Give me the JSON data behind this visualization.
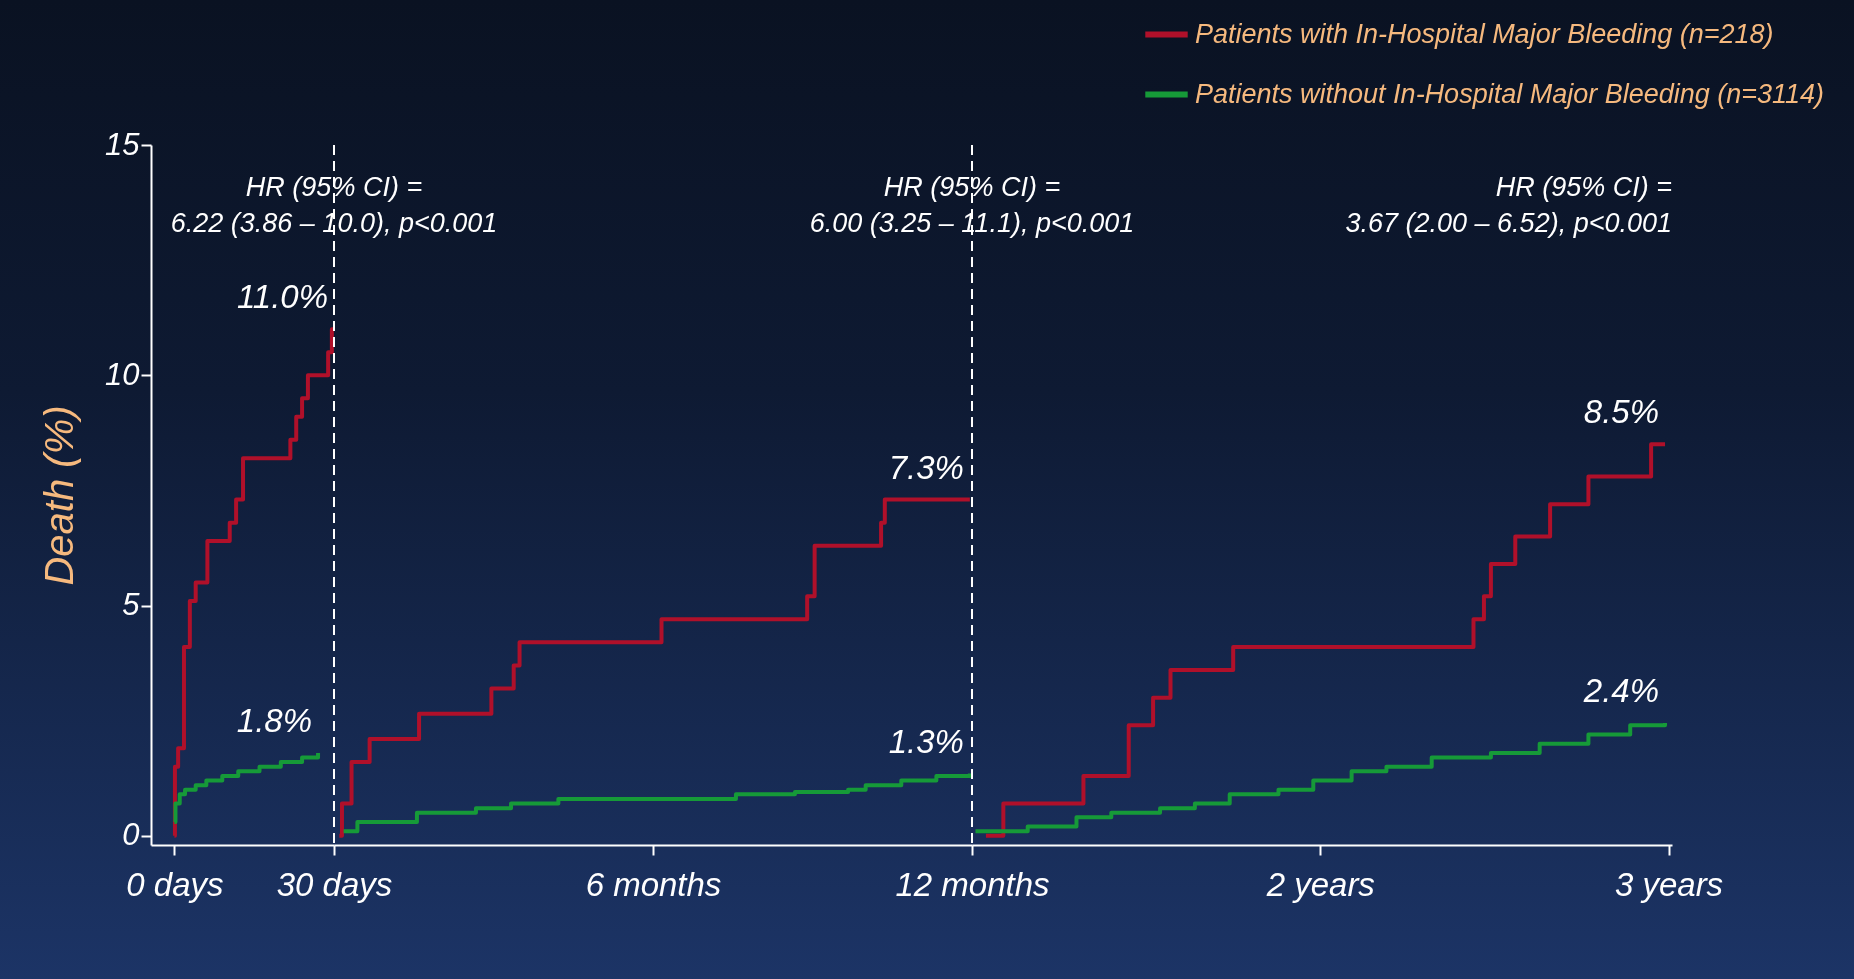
{
  "chart_data": [
    {
      "type": "step",
      "ylabel": "Death (%)",
      "xlim": [
        -4.4,
        30
      ],
      "xticks": [
        {
          "value": 0,
          "label": "0 days"
        },
        {
          "value": 30,
          "label": "30 days"
        }
      ],
      "ylim": [
        -0.2,
        15
      ],
      "yticks": [
        0,
        5,
        10,
        15
      ],
      "grid": false,
      "annotations": [
        "HR (95% CI) =\n6.22 (3.86 – 10.0), p<0.001",
        {
          "text": "11.0%",
          "x": 30,
          "y": 11.0
        },
        {
          "text": "1.8%",
          "x": 27,
          "y": 1.8
        }
      ],
      "ref_lines": [
        {
          "axis": "x",
          "value": 30,
          "color": "#ffffff",
          "line_style": "dashed"
        }
      ],
      "series": [
        {
          "color": "#b0102a",
          "x": [
            0,
            0.1,
            0.7,
            1.8,
            2.9,
            4,
            6.2,
            10.4,
            11.6,
            12.9,
            21.8,
            22.9,
            24,
            25.1,
            28.9,
            29.6,
            30
          ],
          "values": [
            0,
            1.5,
            1.9,
            4.1,
            5.1,
            5.5,
            6.4,
            6.8,
            7.3,
            8.2,
            8.6,
            9.1,
            9.5,
            10.0,
            10.5,
            11.0,
            11.0
          ]
        },
        {
          "color": "#169a38",
          "x": [
            0,
            0.2,
            1,
            2,
            4,
            6,
            9,
            12,
            16,
            20,
            24,
            27
          ],
          "values": [
            0.3,
            0.7,
            0.9,
            1.0,
            1.1,
            1.2,
            1.3,
            1.4,
            1.5,
            1.6,
            1.7,
            1.8
          ]
        }
      ]
    },
    {
      "type": "step",
      "xlim": [
        0,
        12
      ],
      "xticks": [
        {
          "value": 6,
          "label": "6 months"
        },
        {
          "value": 12,
          "label": "12 months"
        }
      ],
      "ylim": [
        -0.2,
        15
      ],
      "yticks": [
        0,
        5,
        10,
        15
      ],
      "tick_labels": "x",
      "grid": false,
      "annotations": [
        "HR (95% CI) =\n6.00 (3.25 – 11.1), p<0.001",
        {
          "text": "7.3%",
          "x": 11.96,
          "y": 7.3
        },
        {
          "text": "1.3%",
          "x": 11.96,
          "y": 1.35
        }
      ],
      "ref_lines": [
        {
          "axis": "x",
          "value": 12,
          "color": "#ffffff",
          "line_style": "dashed"
        }
      ],
      "series": [
        {
          "color": "#b0102a",
          "x": [
            0.1,
            0.15,
            0.33,
            0.67,
            1.6,
            2.96,
            3.38,
            3.49,
            6.16,
            8.9,
            9.04,
            10.29,
            10.36,
            11.96
          ],
          "values": [
            0,
            0.7,
            1.6,
            2.1,
            2.65,
            3.2,
            3.7,
            4.2,
            4.7,
            5.2,
            6.3,
            6.8,
            7.3,
            7.3
          ]
        },
        {
          "color": "#169a38",
          "x": [
            0.18,
            0.44,
            1.56,
            2.67,
            3.33,
            4.22,
            6.89,
            7.56,
            8.67,
            9.67,
            10,
            10.67,
            11.33,
            11.96
          ],
          "values": [
            0.1,
            0.3,
            0.5,
            0.6,
            0.7,
            0.8,
            0.8,
            0.9,
            0.95,
            1.0,
            1.1,
            1.2,
            1.3,
            1.35
          ]
        }
      ]
    },
    {
      "type": "step",
      "xlim": [
        1,
        3.01
      ],
      "xticks": [
        {
          "value": 2,
          "label": "2 years"
        },
        {
          "value": 3,
          "label": "3 years"
        }
      ],
      "ylim": [
        -0.2,
        15
      ],
      "yticks": [
        0,
        5,
        10,
        15
      ],
      "tick_labels": "x",
      "grid": false,
      "legend": "top right",
      "annotations": [
        "HR (95% CI) =\n3.67 (2.00 – 6.52), p<0.001",
        {
          "text": "8.5%",
          "x": 2.99,
          "y": 8.5
        },
        {
          "text": "2.4%",
          "x": 2.99,
          "y": 2.45
        }
      ],
      "series": [
        {
          "name": "Patients with In-Hospital Major Bleeding (n=218)",
          "color": "#b0102a",
          "x": [
            1.04,
            1.09,
            1.32,
            1.45,
            1.52,
            1.57,
            1.75,
            2.44,
            2.47,
            2.49,
            2.56,
            2.66,
            2.77,
            2.95,
            2.99
          ],
          "values": [
            0,
            0.7,
            1.3,
            2.4,
            3.0,
            3.6,
            4.1,
            4.7,
            5.2,
            5.9,
            6.5,
            7.2,
            7.8,
            8.5,
            8.5
          ]
        },
        {
          "name": "Patients without In-Hospital Major Bleeding (n=3114)",
          "color": "#169a38",
          "x": [
            1.01,
            1.16,
            1.3,
            1.4,
            1.54,
            1.64,
            1.74,
            1.88,
            1.98,
            2.09,
            2.19,
            2.32,
            2.49,
            2.63,
            2.77,
            2.89,
            2.99
          ],
          "values": [
            0.1,
            0.2,
            0.4,
            0.5,
            0.6,
            0.7,
            0.9,
            1.0,
            1.2,
            1.4,
            1.5,
            1.7,
            1.8,
            2.0,
            2.2,
            2.4,
            2.45
          ]
        }
      ]
    }
  ]
}
